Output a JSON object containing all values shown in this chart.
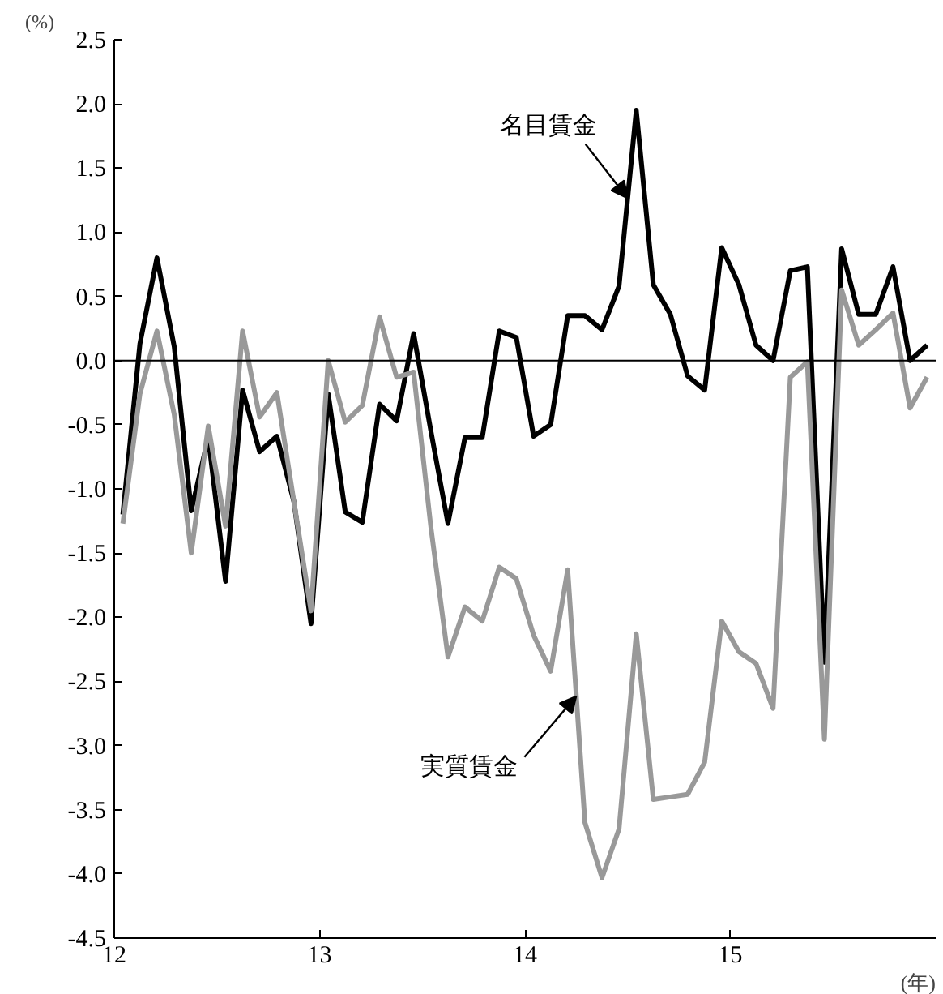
{
  "chart_data": {
    "type": "line",
    "xlabel": "(年)",
    "ylabel": "(%)",
    "x": [
      12.042,
      12.125,
      12.208,
      12.292,
      12.375,
      12.458,
      12.542,
      12.625,
      12.708,
      12.792,
      12.875,
      12.958,
      13.042,
      13.125,
      13.208,
      13.292,
      13.375,
      13.458,
      13.542,
      13.625,
      13.708,
      13.792,
      13.875,
      13.958,
      14.042,
      14.125,
      14.208,
      14.292,
      14.375,
      14.458,
      14.542,
      14.625,
      14.708,
      14.792,
      14.875,
      14.958,
      15.042,
      15.125,
      15.208,
      15.292,
      15.375,
      15.458,
      15.542,
      15.625,
      15.708,
      15.792,
      15.875,
      15.958
    ],
    "series": [
      {
        "name": "名目賃金",
        "color": "#000000",
        "values": [
          -1.2,
          0.13,
          0.8,
          0.11,
          -1.17,
          -0.6,
          -1.72,
          -0.23,
          -0.71,
          -0.59,
          -1.1,
          -2.05,
          -0.26,
          -1.18,
          -1.26,
          -0.34,
          -0.47,
          0.21,
          -0.55,
          -1.27,
          -0.6,
          -0.6,
          0.23,
          0.18,
          -0.59,
          -0.5,
          0.35,
          0.35,
          0.24,
          0.58,
          1.95,
          0.59,
          0.36,
          -0.12,
          -0.23,
          0.88,
          0.59,
          0.12,
          0.0,
          0.7,
          0.73,
          -2.35,
          0.87,
          0.36,
          0.36,
          0.73,
          0.0,
          0.12
        ]
      },
      {
        "name": "実質賃金",
        "color": "#999999",
        "values": [
          -1.27,
          -0.26,
          0.23,
          -0.42,
          -1.5,
          -0.51,
          -1.29,
          0.23,
          -0.44,
          -0.25,
          -1.1,
          -1.95,
          0.0,
          -0.48,
          -0.35,
          0.34,
          -0.13,
          -0.09,
          -1.3,
          -2.31,
          -1.92,
          -2.03,
          -1.61,
          -1.7,
          -2.14,
          -2.42,
          -1.63,
          -3.6,
          -4.03,
          -3.65,
          -2.13,
          -3.42,
          -3.4,
          -3.38,
          -3.13,
          -2.03,
          -2.27,
          -2.36,
          -2.71,
          -0.13,
          -0.01,
          -2.95,
          0.55,
          0.12,
          0.24,
          0.37,
          -0.37,
          -0.13
        ]
      }
    ],
    "xlim": [
      12,
      16
    ],
    "xticks": [
      12,
      13,
      14,
      15
    ],
    "ylim": [
      -4.5,
      2.5
    ],
    "yticks": [
      {
        "value": 2.5,
        "label": "2.5"
      },
      {
        "value": 2.0,
        "label": "2.0"
      },
      {
        "value": 1.5,
        "label": "1.5"
      },
      {
        "value": 1.0,
        "label": "1.0"
      },
      {
        "value": 0.5,
        "label": "0.5"
      },
      {
        "value": 0,
        "label": "0.0"
      },
      {
        "value": -0.5,
        "label": "-0.5"
      },
      {
        "value": -1.0,
        "label": "-1.0"
      },
      {
        "value": -1.5,
        "label": "-1.5"
      },
      {
        "value": -2.0,
        "label": "-2.0"
      },
      {
        "value": -2.5,
        "label": "-2.5"
      },
      {
        "value": -3.0,
        "label": "-3.0"
      },
      {
        "value": -3.5,
        "label": "-3.5"
      },
      {
        "value": -4.0,
        "label": "-4.0"
      },
      {
        "value": -4.5,
        "label": "-4.5"
      }
    ],
    "ref_lines": [
      {
        "axis": "y",
        "value": 0,
        "color": "#000000"
      }
    ],
    "grid": false,
    "legend": false,
    "marker": "none",
    "line_style": "solid"
  }
}
